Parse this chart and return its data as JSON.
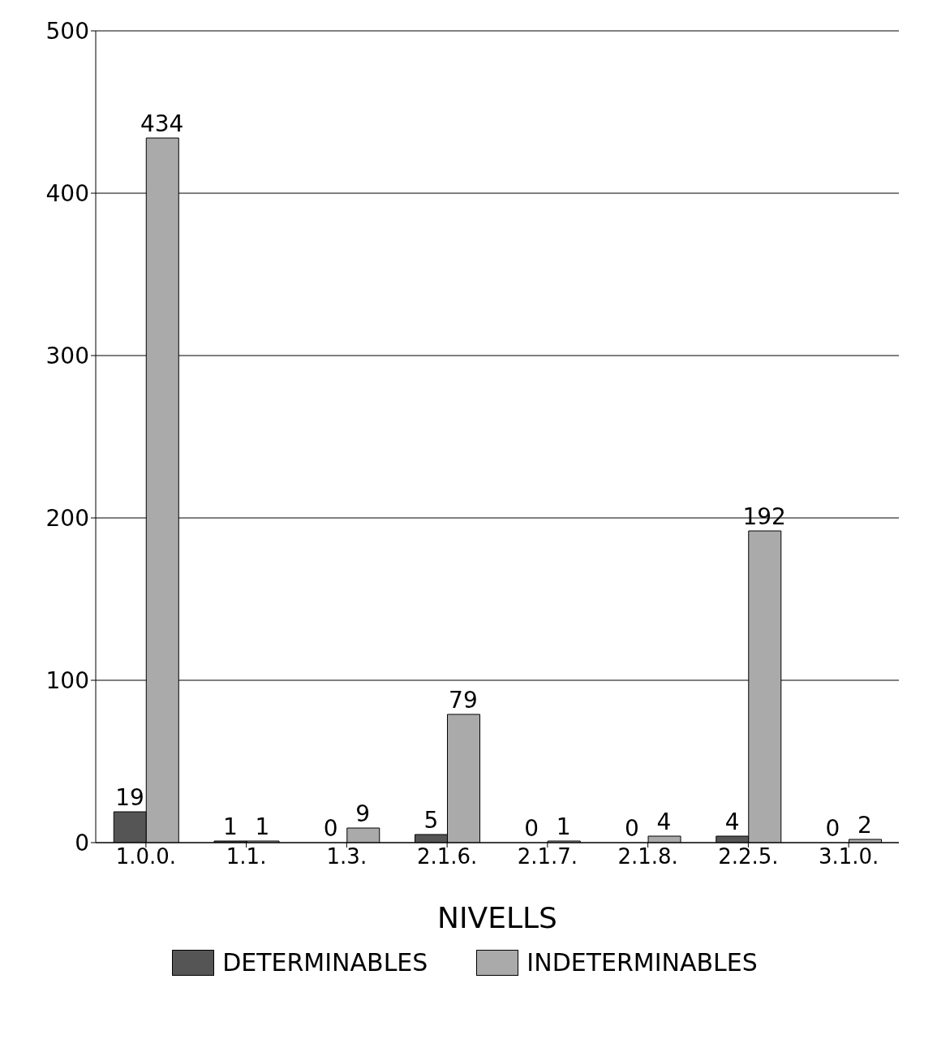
{
  "chart_data": {
    "type": "bar",
    "xlabel": "NIVELLS",
    "categories": [
      "1.0.0.",
      "1.1.",
      "1.3.",
      "2.1.6.",
      "2.1.7.",
      "2.1.8.",
      "2.2.5.",
      "3.1.0."
    ],
    "series": [
      {
        "name": "DETERMINABLES",
        "color": "#555555",
        "values": [
          19,
          1,
          0,
          5,
          0,
          0,
          4,
          0
        ]
      },
      {
        "name": "INDETERMINABLES",
        "color": "#aaaaaa",
        "values": [
          434,
          1,
          9,
          79,
          1,
          4,
          192,
          2
        ]
      }
    ],
    "ylim": [
      0,
      500
    ],
    "yticks": [
      0,
      100,
      200,
      300,
      400,
      500
    ],
    "grid": "y",
    "legend": "bottom",
    "data_labels": true
  }
}
